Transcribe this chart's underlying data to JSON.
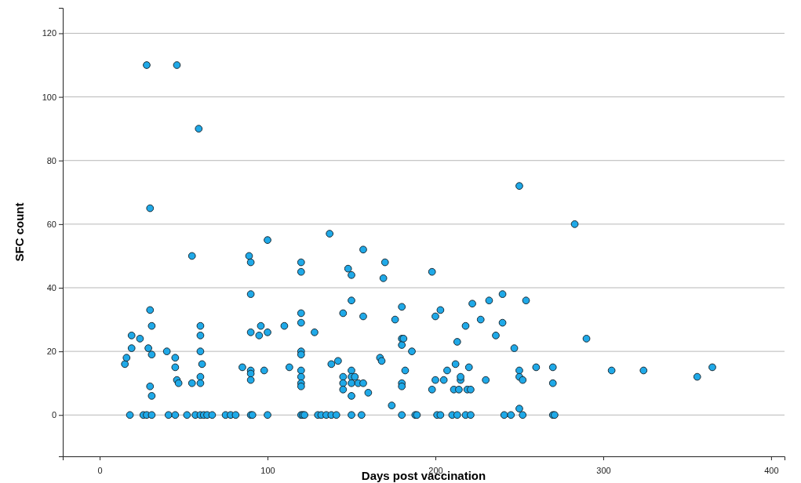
{
  "chart_data": {
    "type": "scatter",
    "xlabel": "Days post vaccination",
    "ylabel": "SFC count",
    "xlim": [
      -22,
      408
    ],
    "ylim": [
      -13,
      128
    ],
    "xticks": [
      0,
      100,
      200,
      300,
      400
    ],
    "yticks": [
      0,
      20,
      40,
      60,
      80,
      100,
      120
    ],
    "grid": "y",
    "marker": "circle",
    "series": [
      {
        "color": "#1fa9e8",
        "x": [
          15,
          16,
          18,
          19,
          19,
          24,
          26,
          28,
          28,
          29,
          30,
          30,
          31,
          31,
          31,
          30,
          31,
          40,
          41,
          45,
          46,
          45,
          45,
          46,
          47,
          52,
          55,
          55,
          57,
          59,
          60,
          60,
          60,
          60,
          60,
          60,
          61,
          62,
          64,
          67,
          75,
          78,
          81,
          85,
          89,
          90,
          90,
          90,
          90,
          90,
          90,
          90,
          91,
          95,
          96,
          98,
          100,
          100,
          100,
          110,
          113,
          120,
          120,
          120,
          120,
          120,
          120,
          120,
          120,
          120,
          120,
          120,
          121,
          122,
          128,
          130,
          132,
          135,
          137,
          138,
          138,
          141,
          142,
          145,
          145,
          145,
          145,
          148,
          150,
          150,
          150,
          150,
          150,
          150,
          150,
          152,
          154,
          156,
          157,
          157,
          157,
          160,
          167,
          168,
          169,
          170,
          174,
          176,
          180,
          180,
          180,
          180,
          180,
          180,
          181,
          182,
          186,
          188,
          189,
          198,
          198,
          200,
          200,
          201,
          203,
          203,
          205,
          207,
          210,
          211,
          212,
          213,
          213,
          214,
          215,
          215,
          218,
          218,
          219,
          220,
          221,
          221,
          222,
          227,
          230,
          232,
          236,
          240,
          240,
          241,
          245,
          247,
          250,
          250,
          250,
          250,
          252,
          252,
          254,
          260,
          270,
          270,
          270,
          271,
          283,
          290,
          305,
          324,
          356,
          365
        ],
        "values": [
          16,
          18,
          0,
          21,
          25,
          24,
          0,
          110,
          0,
          21,
          33,
          9,
          6,
          28,
          19,
          65,
          0,
          20,
          0,
          0,
          110,
          18,
          15,
          11,
          10,
          0,
          10,
          50,
          0,
          90,
          0,
          28,
          25,
          20,
          12,
          10,
          16,
          0,
          0,
          0,
          0,
          0,
          0,
          15,
          50,
          48,
          38,
          26,
          14,
          13,
          11,
          0,
          0,
          25,
          28,
          14,
          26,
          55,
          0,
          28,
          15,
          48,
          45,
          32,
          29,
          20,
          19,
          14,
          12,
          10,
          9,
          0,
          0,
          0,
          26,
          0,
          0,
          0,
          57,
          16,
          0,
          0,
          17,
          32,
          12,
          10,
          8,
          46,
          44,
          36,
          14,
          12,
          10,
          6,
          0,
          12,
          10,
          0,
          52,
          31,
          10,
          7,
          18,
          17,
          43,
          48,
          3,
          30,
          34,
          24,
          22,
          10,
          9,
          0,
          24,
          14,
          20,
          0,
          0,
          45,
          8,
          31,
          11,
          0,
          0,
          33,
          11,
          14,
          0,
          8,
          16,
          0,
          23,
          8,
          11,
          12,
          28,
          0,
          8,
          15,
          8,
          0,
          35,
          30,
          11,
          36,
          25,
          38,
          29,
          0,
          0,
          21,
          72,
          14,
          12,
          2,
          11,
          0,
          36,
          15,
          15,
          10,
          0,
          0,
          60,
          24,
          14,
          14,
          12,
          15
        ]
      }
    ]
  }
}
